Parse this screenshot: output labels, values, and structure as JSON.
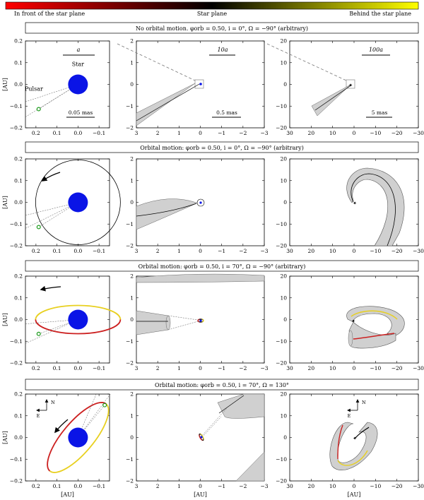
{
  "colorbar": {
    "left_label": "In front of the star plane",
    "center_label": "Star plane",
    "right_label": "Behind the star plane",
    "colors": [
      "#ff0000",
      "#000000",
      "#ffff00"
    ]
  },
  "rows": [
    {
      "title_prefix": "No orbital motion.",
      "title_math": "φorb = 0.50, i = 0°, Ω = −90° (arbitrary)"
    },
    {
      "title_prefix": "Orbital motion:",
      "title_math": "φorb = 0.50, i = 0°, Ω = −90° (arbitrary)"
    },
    {
      "title_prefix": "Orbital motion:",
      "title_math": "φorb = 0.50, i = 70°, Ω = −90° (arbitrary)"
    },
    {
      "title_prefix": "Orbital motion:",
      "title_math": "φorb = 0.50, i = 70°, Ω = 130°"
    }
  ],
  "annotations": {
    "star": "Star",
    "pulsar": "Pulsar",
    "scale_a": "a",
    "scale_10a": "10a",
    "scale_100a": "100a",
    "mas_1": "0.05 mas",
    "mas_2": "0.5 mas",
    "mas_3": "5 mas",
    "compass_n": "N",
    "compass_e": "E"
  },
  "chart_data": [
    {
      "type": "line",
      "panel": "small scale",
      "xlabel": "[AU]",
      "ylabel": "[AU]",
      "xlim": [
        0.25,
        -0.15
      ],
      "ylim": [
        -0.2,
        0.2
      ],
      "xticks": [
        0.2,
        0.1,
        0.0,
        -0.1
      ],
      "yticks": [
        0.2,
        0.1,
        0.0,
        -0.1,
        -0.2
      ],
      "xticklabels": [
        "0.2",
        "0.1",
        "0.0",
        "−0.1"
      ],
      "yticklabels": [
        "0.2",
        "0.1",
        "0.0",
        "−0.1",
        "−0.2"
      ],
      "series": [
        {
          "values": [
            {
              "x": 0.0,
              "y": 0.0
            }
          ]
        },
        {
          "values": [
            {
              "x": 0.187,
              "y": -0.114
            }
          ]
        }
      ]
    },
    {
      "type": "line",
      "panel": "medium scale",
      "xlabel": "[AU]",
      "xlim": [
        3,
        -3
      ],
      "ylim": [
        -2,
        2
      ],
      "xticks": [
        3,
        2,
        1,
        0,
        -1,
        -2,
        -3
      ],
      "yticks": [
        2,
        1,
        0,
        -1,
        -2
      ],
      "xticklabels": [
        "3",
        "2",
        "1",
        "0",
        "−1",
        "−2",
        "−3"
      ],
      "yticklabels": [
        "2",
        "1",
        "0",
        "−1",
        "−2"
      ]
    },
    {
      "type": "line",
      "panel": "large scale",
      "xlabel": "[AU]",
      "xlim": [
        30,
        -30
      ],
      "ylim": [
        -20,
        20
      ],
      "xticks": [
        30,
        20,
        10,
        0,
        -10,
        -20,
        -30
      ],
      "yticks": [
        20,
        10,
        0,
        -10,
        -20
      ],
      "xticklabels": [
        "30",
        "20",
        "10",
        "0",
        "−10",
        "−20",
        "−30"
      ],
      "yticklabels": [
        "20",
        "10",
        "0",
        "−10",
        "−20"
      ]
    }
  ]
}
